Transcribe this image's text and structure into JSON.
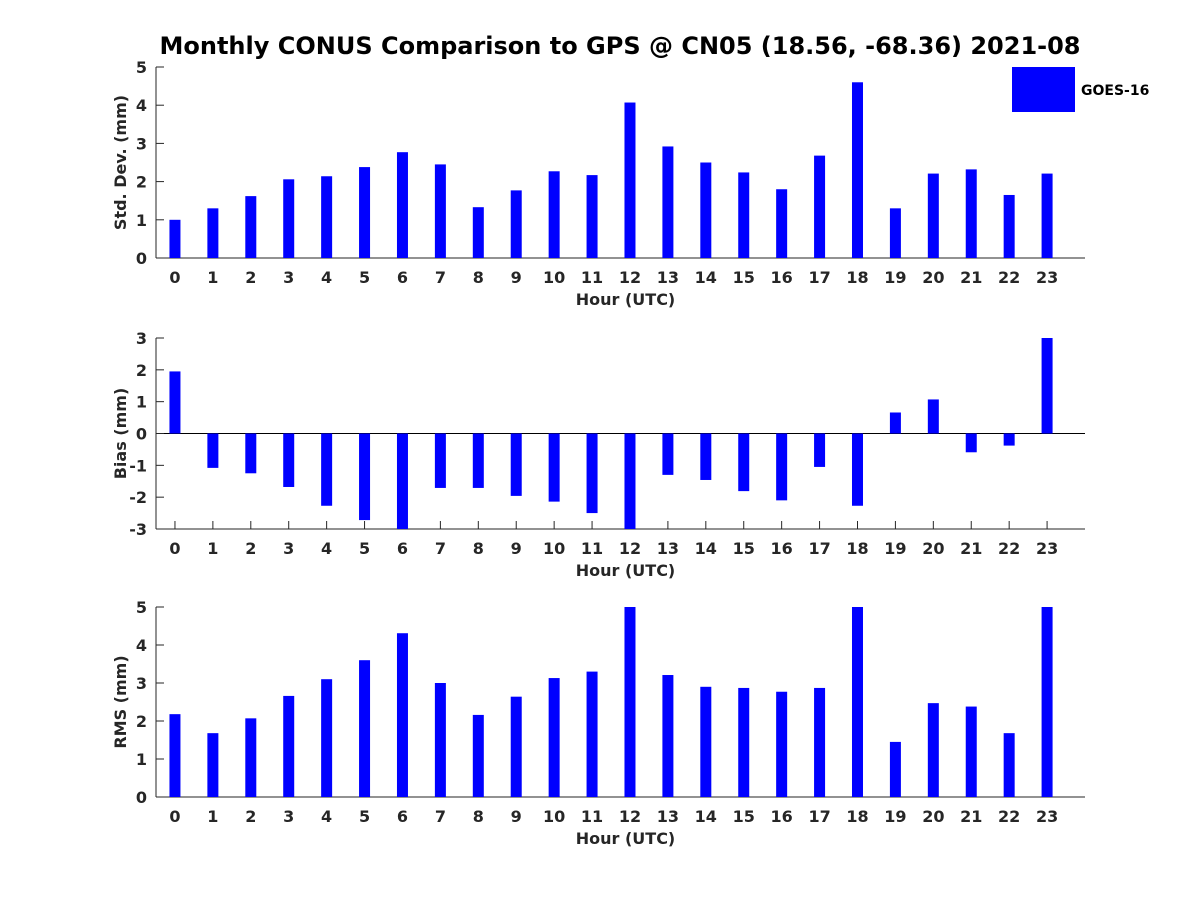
{
  "title": "Monthly CONUS Comparison to GPS @ CN05 (18.56, -68.36) 2021-08",
  "legend": {
    "label": "GOES-16",
    "color": "#0000ff",
    "placement": "top-right"
  },
  "bar_color": "#0000ff",
  "chart_data": [
    {
      "type": "bar",
      "title": "Monthly CONUS Comparison to GPS @ CN05 (18.56, -68.36) 2021-08",
      "xlabel": "Hour (UTC)",
      "ylabel": "Std. Dev. (mm)",
      "categories": [
        "0",
        "1",
        "2",
        "3",
        "4",
        "5",
        "6",
        "7",
        "8",
        "9",
        "10",
        "11",
        "12",
        "13",
        "14",
        "15",
        "16",
        "17",
        "18",
        "19",
        "20",
        "21",
        "22",
        "23"
      ],
      "ylim": [
        0,
        5
      ],
      "yticks": [
        "0",
        "1",
        "2",
        "3",
        "4",
        "5"
      ],
      "series": [
        {
          "name": "GOES-16",
          "values": [
            1.0,
            1.3,
            1.62,
            2.06,
            2.14,
            2.38,
            2.77,
            2.45,
            1.33,
            1.77,
            2.27,
            2.17,
            4.07,
            2.92,
            2.5,
            2.24,
            1.8,
            2.68,
            4.6,
            1.3,
            2.21,
            2.32,
            1.65,
            2.21
          ]
        }
      ]
    },
    {
      "type": "bar",
      "xlabel": "Hour (UTC)",
      "ylabel": "Bias (mm)",
      "categories": [
        "0",
        "1",
        "2",
        "3",
        "4",
        "5",
        "6",
        "7",
        "8",
        "9",
        "10",
        "11",
        "12",
        "13",
        "14",
        "15",
        "16",
        "17",
        "18",
        "19",
        "20",
        "21",
        "22",
        "23"
      ],
      "ylim": [
        -3,
        3
      ],
      "yticks": [
        "-3",
        "-2",
        "-1",
        "0",
        "1",
        "2",
        "3"
      ],
      "series": [
        {
          "name": "GOES-16",
          "values": [
            1.95,
            -1.08,
            -1.25,
            -1.68,
            -2.27,
            -2.72,
            -3.0,
            -1.71,
            -1.71,
            -1.96,
            -2.14,
            -2.5,
            -3.0,
            -1.3,
            -1.46,
            -1.81,
            -2.1,
            -1.05,
            -2.27,
            0.66,
            1.07,
            -0.59,
            -0.38,
            3.0
          ]
        }
      ]
    },
    {
      "type": "bar",
      "xlabel": "Hour (UTC)",
      "ylabel": "RMS (mm)",
      "categories": [
        "0",
        "1",
        "2",
        "3",
        "4",
        "5",
        "6",
        "7",
        "8",
        "9",
        "10",
        "11",
        "12",
        "13",
        "14",
        "15",
        "16",
        "17",
        "18",
        "19",
        "20",
        "21",
        "22",
        "23"
      ],
      "ylim": [
        0,
        5
      ],
      "yticks": [
        "0",
        "1",
        "2",
        "3",
        "4",
        "5"
      ],
      "series": [
        {
          "name": "GOES-16",
          "values": [
            2.18,
            1.68,
            2.07,
            2.66,
            3.1,
            3.6,
            4.31,
            3.0,
            2.16,
            2.64,
            3.13,
            3.3,
            5.0,
            3.21,
            2.9,
            2.87,
            2.77,
            2.87,
            5.0,
            1.45,
            2.47,
            2.38,
            1.68,
            5.0
          ]
        }
      ]
    }
  ]
}
